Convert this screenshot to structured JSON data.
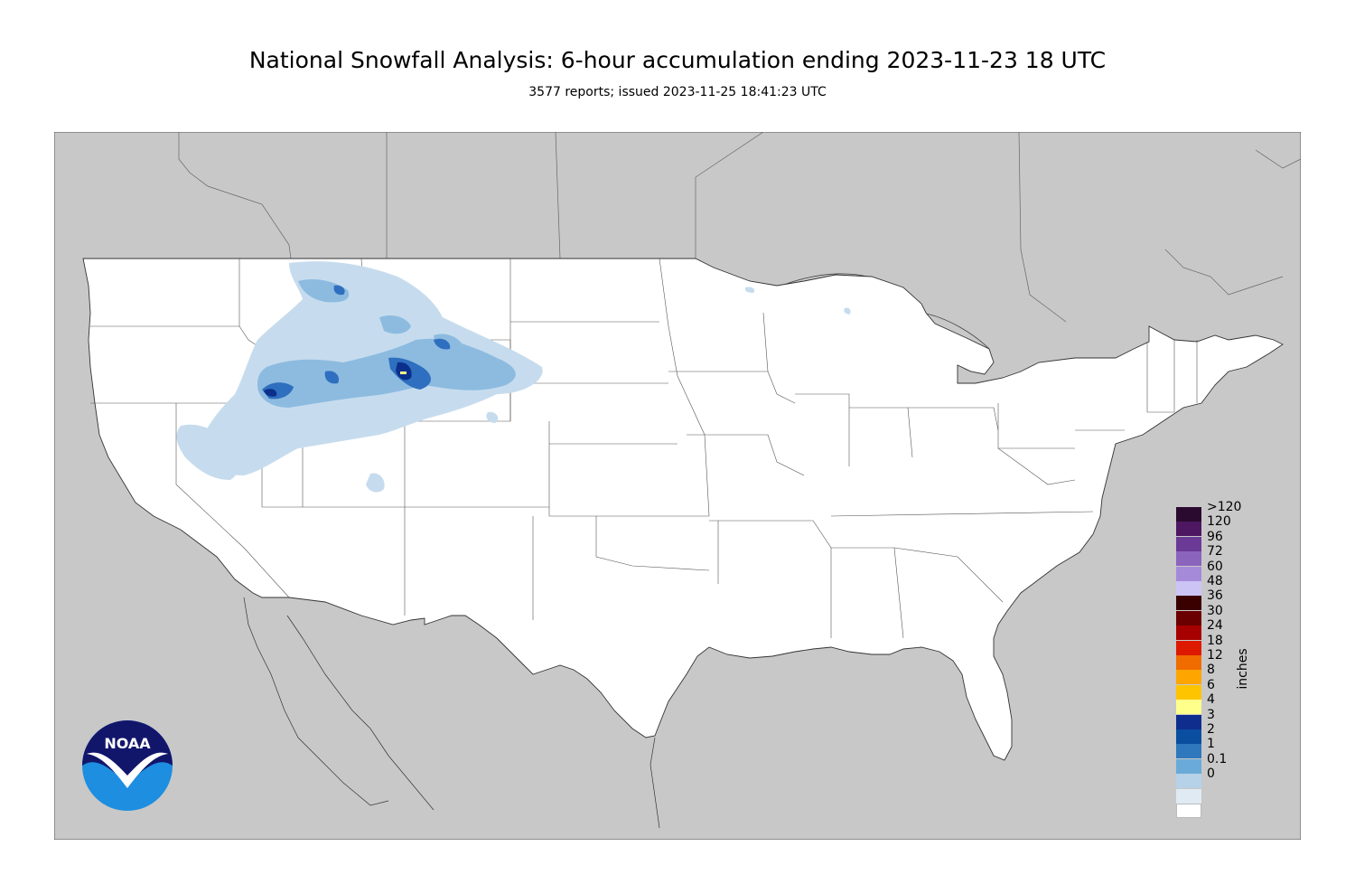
{
  "title": "National Snowfall Analysis: 6-hour accumulation ending 2023-11-23 18 UTC",
  "subtitle": "3577 reports; issued 2023-11-25 18:41:23 UTC",
  "legend": {
    "units": "inches",
    "levels": [
      {
        "label": ">120",
        "color": "#2a0a2e"
      },
      {
        "label": "120",
        "color": "#4d1762"
      },
      {
        "label": "96",
        "color": "#6b3a96"
      },
      {
        "label": "72",
        "color": "#8b64bd"
      },
      {
        "label": "60",
        "color": "#a58ad9"
      },
      {
        "label": "48",
        "color": "#ccc4f5"
      },
      {
        "label": "36",
        "color": "#3a0000"
      },
      {
        "label": "30",
        "color": "#6b0000"
      },
      {
        "label": "24",
        "color": "#a60000"
      },
      {
        "label": "18",
        "color": "#dd1a00"
      },
      {
        "label": "12",
        "color": "#f06b00"
      },
      {
        "label": "8",
        "color": "#ffa500"
      },
      {
        "label": "6",
        "color": "#ffc400"
      },
      {
        "label": "4",
        "color": "#ffff8c"
      },
      {
        "label": "3",
        "color": "#0f2d8c"
      },
      {
        "label": "2",
        "color": "#0a4ea0"
      },
      {
        "label": "1",
        "color": "#2f78bd"
      },
      {
        "label": "0.1",
        "color": "#6aaad8"
      },
      {
        "label": "0",
        "color": "#b6d2e8"
      }
    ],
    "extra_bottom_colors": [
      "#e0eaf3",
      "#ffffff"
    ]
  },
  "colors": {
    "land_outside": "#c8c8c8",
    "water": "#c8c8c8",
    "conus": "#ffffff",
    "snow_light": "#c6dcee",
    "snow_mid": "#8dbbe0",
    "snow_heavy": "#2f6fbf",
    "snow_max": "#0b2f8a"
  },
  "logo": {
    "text": "NOAA"
  }
}
